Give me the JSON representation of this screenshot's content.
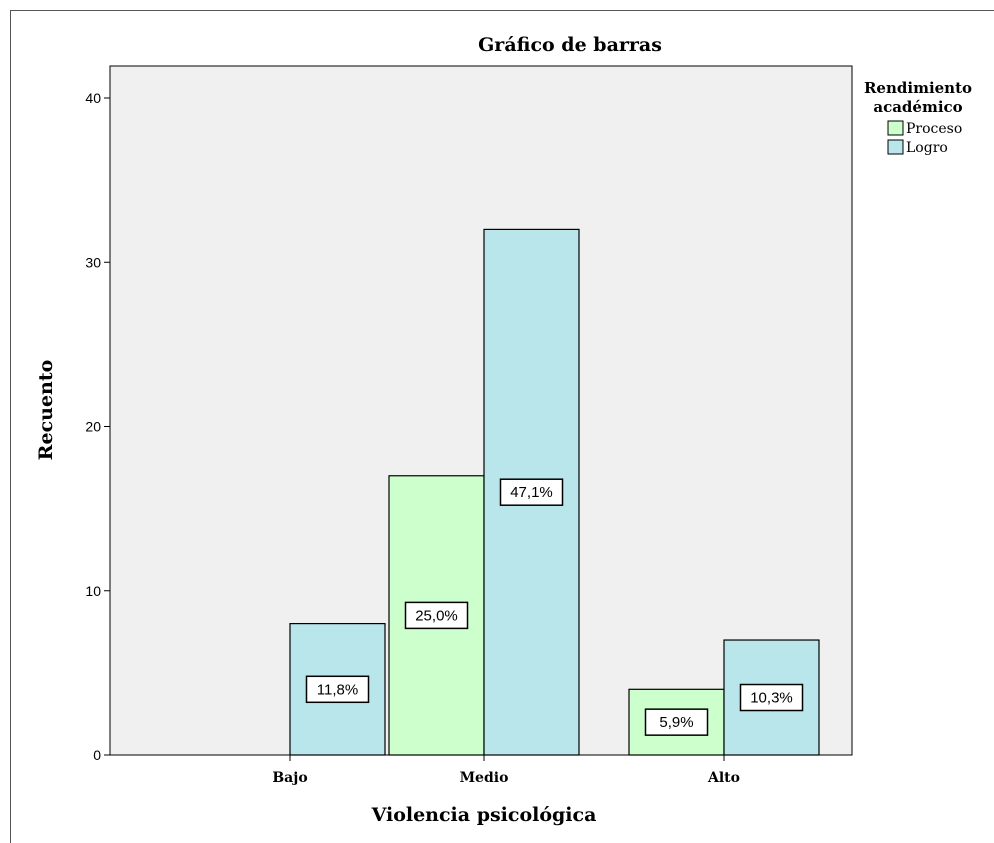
{
  "chart_data": {
    "type": "bar",
    "title": "Gráfico de barras",
    "xlabel": "Violencia psicológica",
    "ylabel": "Recuento",
    "categories": [
      "Bajo",
      "Medio",
      "Alto"
    ],
    "ylim": [
      0,
      42
    ],
    "yticks": [
      0,
      10,
      20,
      30,
      40
    ],
    "grid": false,
    "legend": {
      "title": "Rendimiento académico",
      "title_lines": [
        "Rendimiento",
        "académico"
      ],
      "placement": "right"
    },
    "series": [
      {
        "name": "Proceso",
        "color": "#ccffcc",
        "values": [
          0,
          17,
          4
        ],
        "labels": [
          "",
          "25,0%",
          "5,9%"
        ]
      },
      {
        "name": "Logro",
        "color": "#b8e6ea",
        "values": [
          8,
          32,
          7
        ],
        "labels": [
          "11,8%",
          "47,1%",
          "10,3%"
        ]
      }
    ]
  }
}
